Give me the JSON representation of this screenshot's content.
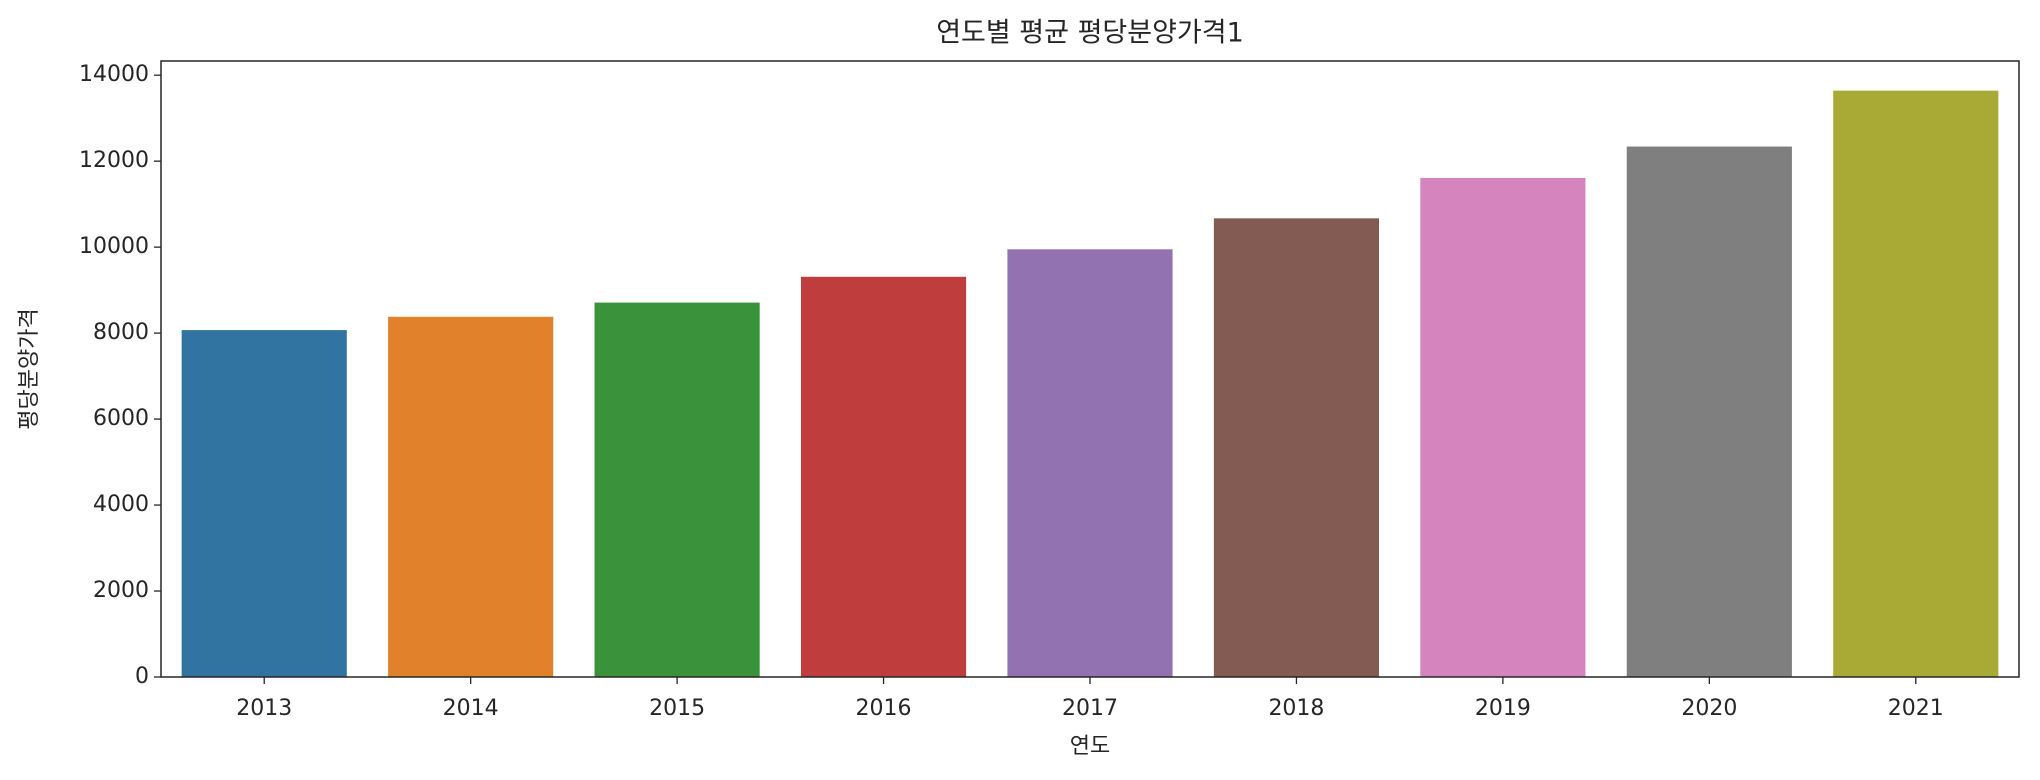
{
  "chart_data": {
    "type": "bar",
    "title": "연도별 평균 평당분양가격1",
    "x_label": "연도",
    "y_label": "평당분양가격",
    "categories": [
      "2013",
      "2014",
      "2015",
      "2016",
      "2017",
      "2018",
      "2019",
      "2020",
      "2021"
    ],
    "values": [
      8070,
      8380,
      8710,
      9310,
      9950,
      10670,
      11610,
      12340,
      13640
    ],
    "colors": [
      "#3274a1",
      "#e1812c",
      "#3a923a",
      "#c03d3e",
      "#9372b2",
      "#845b53",
      "#d684bd",
      "#7f7f7f",
      "#a9aa35"
    ],
    "ylim": [
      0,
      14330
    ],
    "yticks": [
      0,
      2000,
      4000,
      6000,
      8000,
      10000,
      12000,
      14000
    ],
    "grid": false
  }
}
